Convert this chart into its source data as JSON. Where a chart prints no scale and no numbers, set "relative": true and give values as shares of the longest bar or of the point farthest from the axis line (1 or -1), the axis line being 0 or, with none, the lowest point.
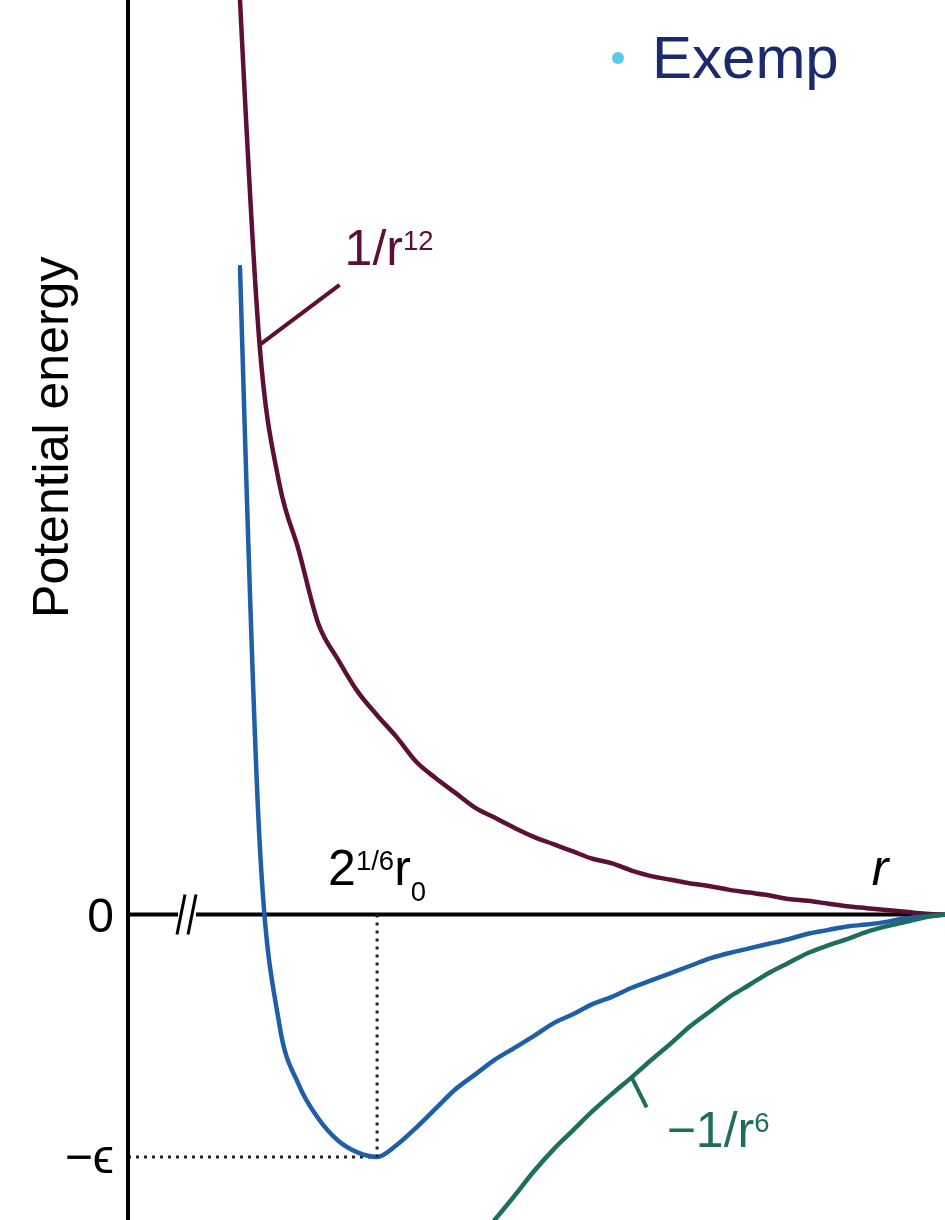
{
  "chart_data": {
    "type": "line",
    "title": "Exemp",
    "ylabel": "Potential energy",
    "xlabel": "r",
    "relative": true,
    "categories": [
      null,
      null,
      null,
      null,
      null,
      null,
      null,
      null,
      null,
      null,
      null,
      null,
      null,
      null,
      null,
      null,
      null,
      null,
      null,
      null,
      null,
      null,
      null,
      null,
      null,
      null,
      null,
      null,
      null,
      null,
      null,
      null,
      null,
      null,
      null,
      null,
      null
    ],
    "annotations": [
      "0",
      {
        "text": "2$^{1/6}$r$_{0}$",
        "y": -0.265
      }
    ],
    "ref_lines": [
      {
        "axis": "y",
        "value": -0.265,
        "label": "−ϵ",
        "line_style": "dotted",
        "color": "#222222"
      }
    ],
    "marker": "none",
    "line_style": "solid",
    "series": [
      {
        "name": "1/r$^{12}$",
        "color": "#5c1035",
        "values": [
          1,
          0.623,
          0.472,
          0.398,
          0.318,
          0.279,
          0.244,
          0.218,
          0.194,
          0.167,
          0.149,
          0.133,
          0.117,
          0.106,
          0.095,
          0.085,
          0.077,
          0.069,
          0.061,
          0.056,
          0.048,
          0.042,
          0.038,
          0.034,
          0.031,
          0.027,
          0.024,
          0.021,
          0.017,
          0.015,
          0.012,
          0.009,
          0.007,
          0.005,
          0.003,
          0.001,
          0
        ]
      },
      {
        "color": "#1f5fa8",
        "values": [
          0.708,
          0.08,
          -0.119,
          -0.186,
          -0.223,
          -0.247,
          -0.26,
          -0.265,
          -0.252,
          -0.233,
          -0.212,
          -0.191,
          -0.175,
          -0.159,
          -0.146,
          -0.133,
          -0.119,
          -0.109,
          -0.098,
          -0.09,
          -0.08,
          -0.072,
          -0.064,
          -0.056,
          -0.048,
          -0.042,
          -0.037,
          -0.032,
          -0.027,
          -0.021,
          -0.017,
          -0.013,
          -0.011,
          -0.008,
          -0.004,
          -0.002,
          0
        ]
      },
      {
        "name": "−1/r$^{6}$",
        "color": "#1e6e5e",
        "values": [
          null,
          null,
          null,
          null,
          null,
          null,
          null,
          null,
          null,
          null,
          null,
          null,
          null,
          -0.334,
          -0.308,
          -0.281,
          -0.257,
          -0.236,
          -0.215,
          -0.196,
          -0.178,
          -0.159,
          -0.141,
          -0.122,
          -0.106,
          -0.09,
          -0.077,
          -0.064,
          -0.053,
          -0.042,
          -0.034,
          -0.027,
          -0.019,
          -0.013,
          -0.008,
          -0.003,
          0
        ]
      }
    ]
  }
}
